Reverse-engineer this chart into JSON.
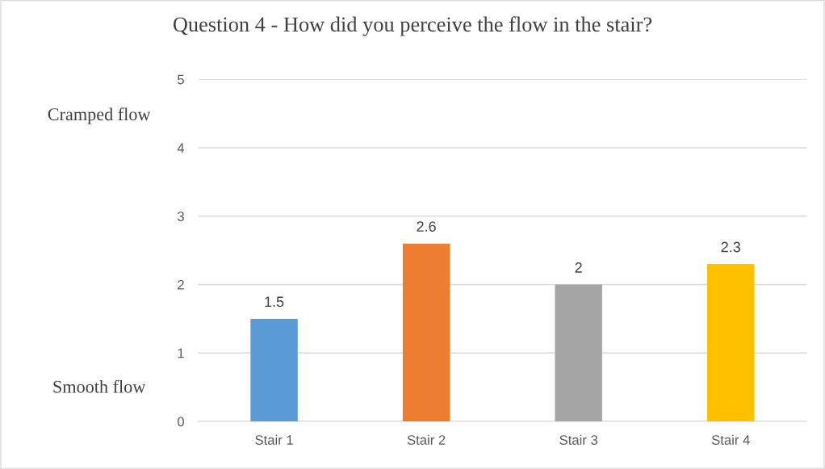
{
  "chart_data": {
    "type": "bar",
    "title": "Question 4 - How did you perceive the flow in the stair?",
    "categories": [
      "Stair 1",
      "Stair 2",
      "Stair 3",
      "Stair 4"
    ],
    "values": [
      1.5,
      2.6,
      2,
      2.3
    ],
    "colors": [
      "#5b9bd5",
      "#ed7d31",
      "#a5a5a5",
      "#ffc000"
    ],
    "ylim": [
      0,
      5
    ],
    "yticks": [
      0,
      1,
      2,
      3,
      4,
      5
    ],
    "grid": "y",
    "data_labels": true,
    "annotations": [
      "Cramped flow",
      "Smooth flow"
    ]
  }
}
